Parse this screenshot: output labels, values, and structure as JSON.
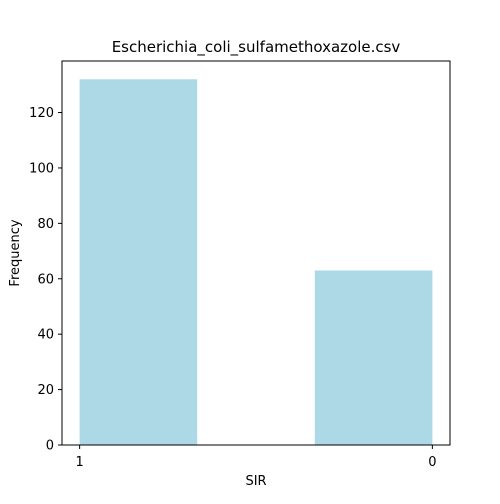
{
  "chart_data": {
    "type": "bar",
    "title": "Escherichia_coli_sulfamethoxazole.csv",
    "xlabel": "SIR",
    "ylabel": "Frequency",
    "categories": [
      "1",
      "0"
    ],
    "values": [
      132,
      63
    ],
    "ylim": [
      0,
      138.6
    ],
    "yticks": [
      0,
      20,
      40,
      60,
      80,
      100,
      120
    ],
    "grid": false,
    "legend": "none",
    "bar_color": "#add8e6"
  }
}
